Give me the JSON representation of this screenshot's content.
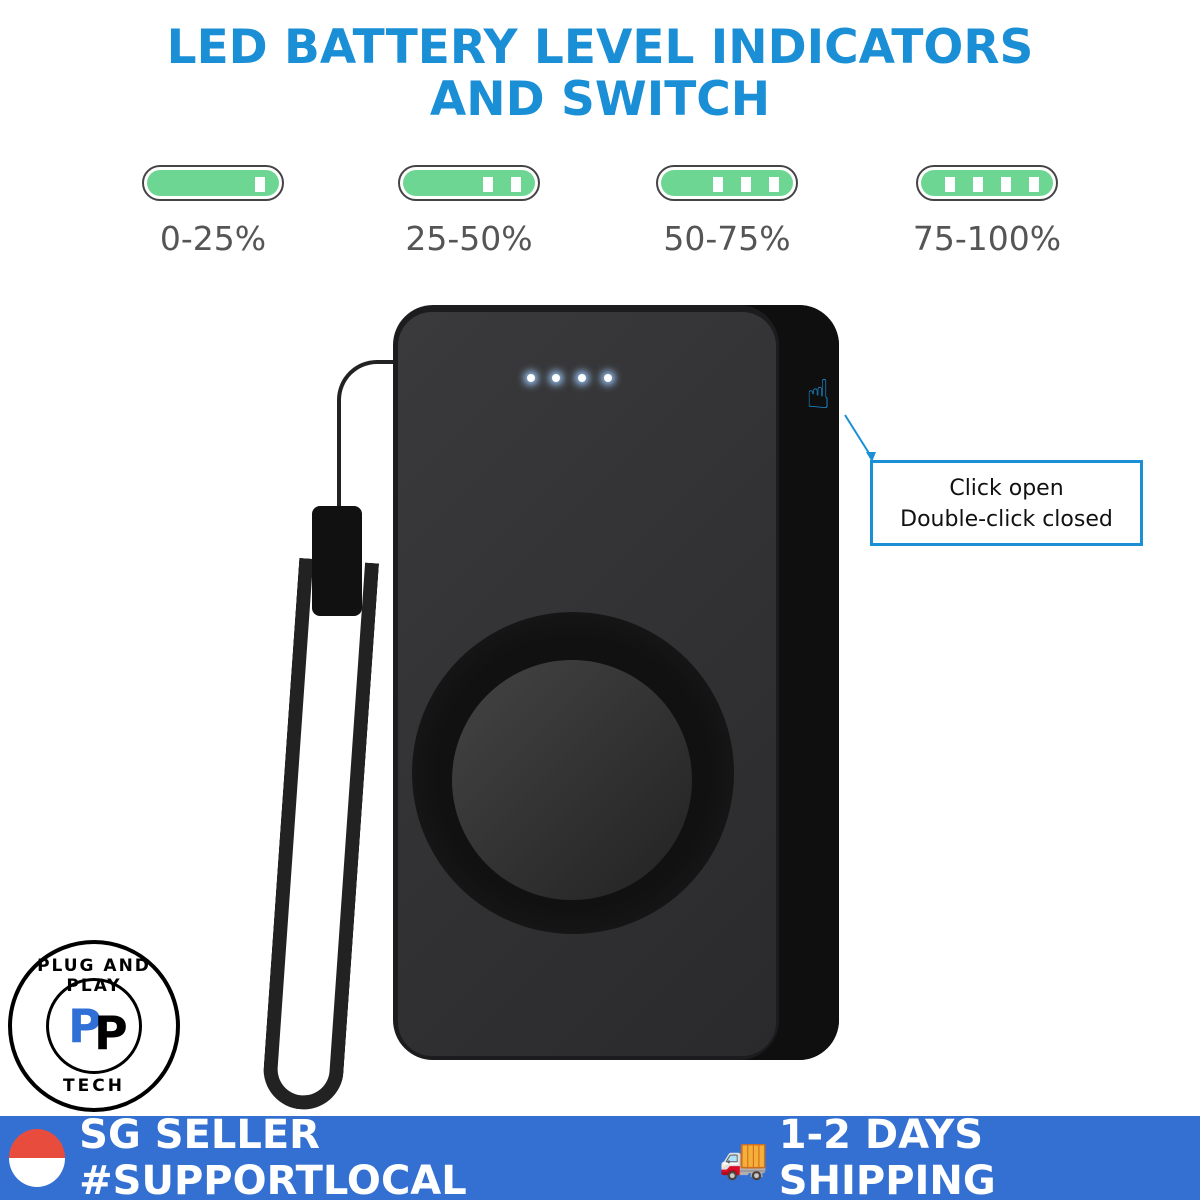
{
  "title": {
    "line1": "LED BATTERY LEVEL INDICATORS",
    "line2": "AND SWITCH"
  },
  "indicators": [
    {
      "label": "0-25%",
      "bars": 1
    },
    {
      "label": "25-50%",
      "bars": 2
    },
    {
      "label": "50-75%",
      "bars": 3
    },
    {
      "label": "75-100%",
      "bars": 4
    }
  ],
  "colors": {
    "accent": "#1a8fd6",
    "battery_fill": "#6dd693",
    "banner": "#3370d2"
  },
  "callout": {
    "line1": "Click open",
    "line2": "Double-click closed"
  },
  "logo": {
    "top": "PLUG AND PLAY",
    "bottom": "TECH",
    "mark": "P&P"
  },
  "banner": {
    "seller": "SG SELLER #SUPPORTLOCAL",
    "shipping": "1-2 DAYS SHIPPING",
    "flag_icon": "singapore-flag-icon",
    "truck_icon": "fast-delivery-truck-icon"
  }
}
